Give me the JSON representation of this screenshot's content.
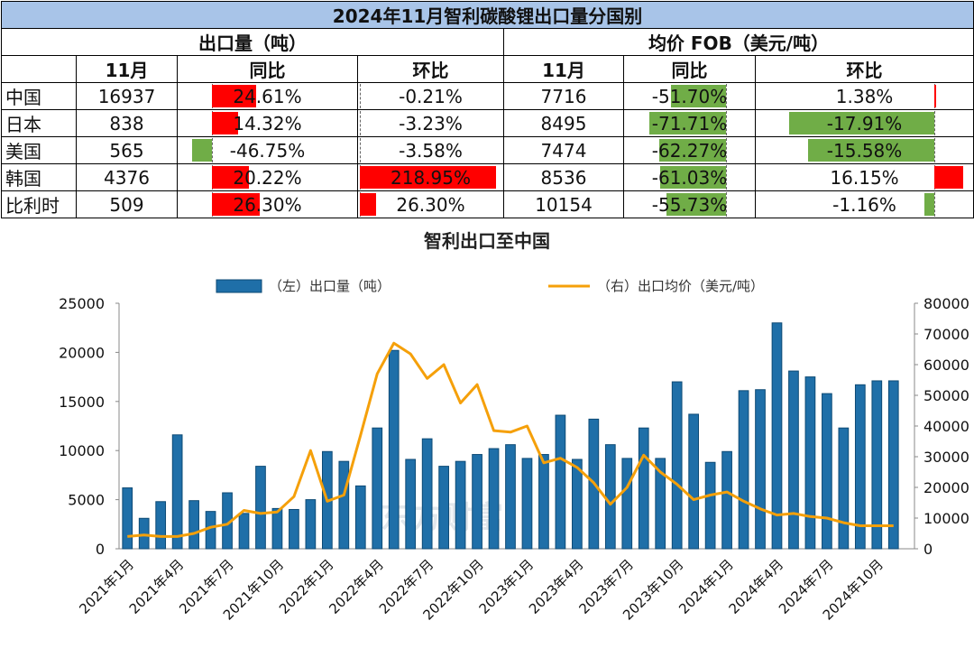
{
  "table": {
    "title": "2024年11月智利碳酸锂出口量分国别",
    "group_volume": "出口量（吨）",
    "group_price": "均价 FOB（美元/吨）",
    "col_month": "11月",
    "col_yoy": "同比",
    "col_mom": "环比",
    "rows": [
      {
        "country": "中国",
        "vol": "16937",
        "vol_yoy": "24.61%",
        "vol_mom": "-0.21%",
        "price": "7716",
        "price_yoy": "-51.70%",
        "price_mom": "1.38%"
      },
      {
        "country": "日本",
        "vol": "838",
        "vol_yoy": "14.32%",
        "vol_mom": "-3.23%",
        "price": "8495",
        "price_yoy": "-71.71%",
        "price_mom": "-17.91%"
      },
      {
        "country": "美国",
        "vol": "565",
        "vol_yoy": "-46.75%",
        "vol_mom": "-3.58%",
        "price": "7474",
        "price_yoy": "-62.27%",
        "price_mom": "-15.58%"
      },
      {
        "country": "韩国",
        "vol": "4376",
        "vol_yoy": "20.22%",
        "vol_mom": "218.95%",
        "price": "8536",
        "price_yoy": "-61.03%",
        "price_mom": "16.15%"
      },
      {
        "country": "比利时",
        "vol": "509",
        "vol_yoy": "26.30%",
        "vol_mom": "26.30%",
        "price": "10154",
        "price_yoy": "-55.73%",
        "price_mom": "-1.16%"
      }
    ],
    "colors": {
      "positive": "#ff0000",
      "negative": "#70ad47",
      "title_bg": "#a8c4e8"
    }
  },
  "chart_data": {
    "type": "bar",
    "title": "智利出口至中国",
    "series": [
      {
        "name": "（左）出口量（吨）",
        "type": "bar",
        "axis": "left",
        "color": "#1f6fa8",
        "values": [
          6200,
          3100,
          4800,
          11600,
          4900,
          3800,
          5700,
          3600,
          8400,
          4100,
          4000,
          5000,
          9900,
          8900,
          6400,
          12300,
          20200,
          9100,
          11200,
          8400,
          8900,
          9600,
          10200,
          10600,
          9200,
          9600,
          13600,
          9100,
          13200,
          10600,
          9200,
          12300,
          9200,
          17000,
          13700,
          8800,
          9900,
          16100,
          16200,
          23000,
          18100,
          17500,
          15800,
          12300,
          16700,
          17100,
          17100
        ]
      },
      {
        "name": "（右）出口均价（美元/吨）",
        "type": "line",
        "axis": "right",
        "color": "#f5a00a",
        "values": [
          4000,
          4500,
          4000,
          4000,
          5000,
          7000,
          8000,
          12500,
          11500,
          12000,
          17000,
          32000,
          15500,
          17500,
          37000,
          57000,
          67000,
          63500,
          55500,
          60000,
          47500,
          53500,
          38500,
          38000,
          40000,
          28000,
          29500,
          26500,
          21500,
          14500,
          20000,
          30500,
          25000,
          21000,
          16000,
          17500,
          18500,
          15500,
          13000,
          11000,
          11500,
          10500,
          10000,
          8500,
          7500,
          7500,
          7500
        ]
      }
    ],
    "x_ticks": [
      "2021年1月",
      "2021年4月",
      "2021年7月",
      "2021年10月",
      "2022年1月",
      "2022年4月",
      "2022年7月",
      "2022年10月",
      "2023年1月",
      "2023年4月",
      "2023年7月",
      "2023年10月",
      "2024年1月",
      "2024年4月",
      "2024年7月",
      "2024年10月"
    ],
    "x_tick_every": 3,
    "y_left": {
      "min": 0,
      "max": 25000,
      "ticks": [
        0,
        5000,
        10000,
        15000,
        20000,
        25000
      ]
    },
    "y_right": {
      "min": 0,
      "max": 80000,
      "ticks": [
        0,
        10000,
        20000,
        30000,
        40000,
        50000,
        60000,
        70000,
        80000
      ]
    },
    "legend_position": "top",
    "watermark": "东方财富"
  }
}
